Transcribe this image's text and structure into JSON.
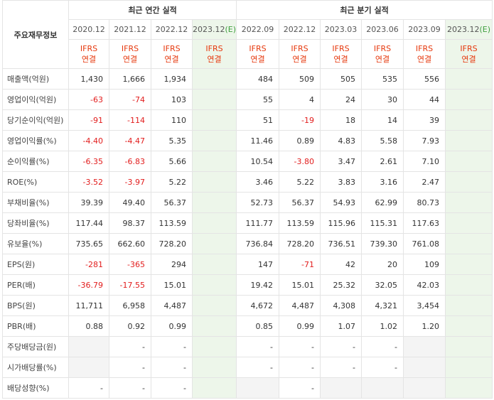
{
  "header": {
    "corner_label": "주요재무정보",
    "annual_group": "최근 연간 실적",
    "quarter_group": "최근 분기 실적",
    "annual_periods": [
      {
        "period": "2020.12",
        "flag": ""
      },
      {
        "period": "2021.12",
        "flag": ""
      },
      {
        "period": "2022.12",
        "flag": ""
      },
      {
        "period": "2023.12",
        "flag": "(E)"
      }
    ],
    "quarter_periods": [
      {
        "period": "2022.09",
        "flag": ""
      },
      {
        "period": "2022.12",
        "flag": ""
      },
      {
        "period": "2023.03",
        "flag": ""
      },
      {
        "period": "2023.06",
        "flag": ""
      },
      {
        "period": "2023.09",
        "flag": ""
      },
      {
        "period": "2023.12",
        "flag": "(E)"
      }
    ],
    "basis_line1": "IFRS",
    "basis_line2": "연결"
  },
  "rows": [
    {
      "label": "매출액(억원)",
      "annual": [
        "1,430",
        "1,666",
        "1,934",
        ""
      ],
      "quarter": [
        "484",
        "509",
        "505",
        "535",
        "556",
        ""
      ]
    },
    {
      "label": "영업이익(억원)",
      "annual": [
        "-63",
        "-74",
        "103",
        ""
      ],
      "quarter": [
        "55",
        "4",
        "24",
        "30",
        "44",
        ""
      ]
    },
    {
      "label": "당기순이익(억원)",
      "annual": [
        "-91",
        "-114",
        "110",
        ""
      ],
      "quarter": [
        "51",
        "-19",
        "18",
        "14",
        "39",
        ""
      ]
    },
    {
      "label": "영업이익률(%)",
      "annual": [
        "-4.40",
        "-4.47",
        "5.35",
        ""
      ],
      "quarter": [
        "11.46",
        "0.89",
        "4.83",
        "5.58",
        "7.93",
        ""
      ]
    },
    {
      "label": "순이익률(%)",
      "annual": [
        "-6.35",
        "-6.83",
        "5.66",
        ""
      ],
      "quarter": [
        "10.54",
        "-3.80",
        "3.47",
        "2.61",
        "7.10",
        ""
      ]
    },
    {
      "label": "ROE(%)",
      "annual": [
        "-3.52",
        "-3.97",
        "5.22",
        ""
      ],
      "quarter": [
        "3.46",
        "5.22",
        "3.83",
        "3.16",
        "2.47",
        ""
      ]
    },
    {
      "label": "부채비율(%)",
      "annual": [
        "39.39",
        "49.40",
        "56.37",
        ""
      ],
      "quarter": [
        "52.73",
        "56.37",
        "54.93",
        "62.99",
        "80.73",
        ""
      ]
    },
    {
      "label": "당좌비율(%)",
      "annual": [
        "117.44",
        "98.37",
        "113.59",
        ""
      ],
      "quarter": [
        "111.77",
        "113.59",
        "115.96",
        "115.31",
        "117.63",
        ""
      ]
    },
    {
      "label": "유보율(%)",
      "annual": [
        "735.65",
        "662.60",
        "728.20",
        ""
      ],
      "quarter": [
        "736.84",
        "728.20",
        "736.51",
        "739.30",
        "761.08",
        ""
      ]
    },
    {
      "label": "EPS(원)",
      "annual": [
        "-281",
        "-365",
        "294",
        ""
      ],
      "quarter": [
        "147",
        "-71",
        "42",
        "20",
        "109",
        ""
      ]
    },
    {
      "label": "PER(배)",
      "annual": [
        "-36.79",
        "-17.55",
        "15.01",
        ""
      ],
      "quarter": [
        "19.42",
        "15.01",
        "25.32",
        "32.05",
        "42.03",
        ""
      ]
    },
    {
      "label": "BPS(원)",
      "annual": [
        "11,711",
        "6,958",
        "4,487",
        ""
      ],
      "quarter": [
        "4,672",
        "4,487",
        "4,308",
        "4,321",
        "3,454",
        ""
      ]
    },
    {
      "label": "PBR(배)",
      "annual": [
        "0.88",
        "0.92",
        "0.99",
        ""
      ],
      "quarter": [
        "0.85",
        "0.99",
        "1.07",
        "1.02",
        "1.20",
        ""
      ]
    },
    {
      "label": "주당배당금(원)",
      "annual": [
        "",
        "-",
        "-",
        ""
      ],
      "quarter": [
        "-",
        "-",
        "-",
        "-",
        "",
        ""
      ]
    },
    {
      "label": "시가배당률(%)",
      "annual": [
        "",
        "-",
        "-",
        ""
      ],
      "quarter": [
        "-",
        "-",
        "-",
        "-",
        "",
        ""
      ]
    },
    {
      "label": "배당성향(%)",
      "annual": [
        "-",
        "-",
        "-",
        ""
      ],
      "quarter": [
        "",
        "-",
        "",
        "",
        "",
        ""
      ]
    }
  ],
  "colors": {
    "negative": "#e21d1d",
    "basis_text": "#e6380d",
    "estimate_bg": "#edf6ea",
    "estimate_flag": "#3f9f3f",
    "empty_bg": "#f4f4f4",
    "border": "#e4e4e4"
  }
}
